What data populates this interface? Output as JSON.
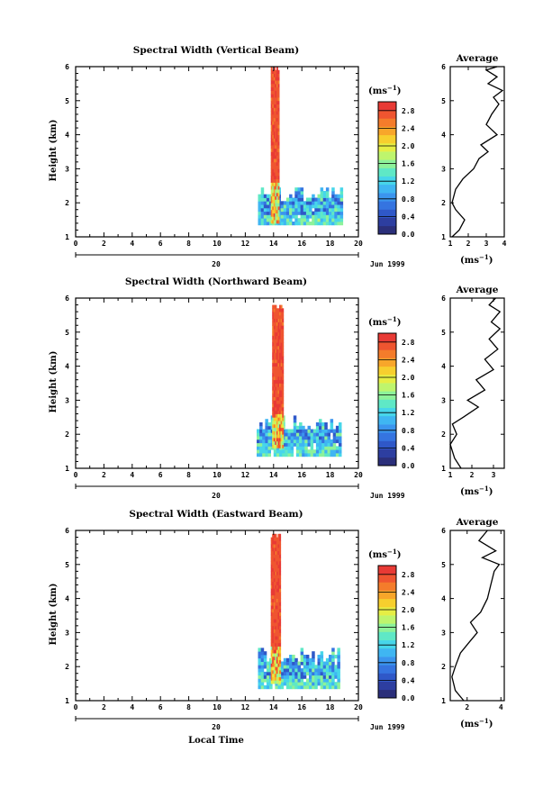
{
  "chart_data": [
    {
      "type": "heatmap",
      "panel": "vertical",
      "title": "Spectral Width (Vertical Beam)",
      "xlabel": "",
      "ylabel": "Height (km)",
      "xlim": [
        0,
        20
      ],
      "ylim": [
        1,
        6
      ],
      "xticks": [
        "0",
        "2",
        "4",
        "6",
        "8",
        "10",
        "12",
        "14",
        "16",
        "18",
        "20"
      ],
      "yticks": [
        "1",
        "2",
        "3",
        "4",
        "5",
        "6"
      ],
      "date_day": "20",
      "date_month": "Jun 1999",
      "colorbar": {
        "label": "(ms",
        "label_sup": "−1",
        "ticks": [
          "2.8",
          "2.4",
          "2.0",
          "1.6",
          "1.2",
          "0.8",
          "0.4",
          "0.0"
        ],
        "range": [
          0,
          3.0
        ]
      },
      "data": {
        "spike": {
          "t0": 13.8,
          "t1": 14.3,
          "h0": 1.4,
          "h1": 6.0,
          "value": 2.9
        },
        "low_region": {
          "t0": 12.9,
          "t1": 18.7,
          "h0": 1.35,
          "h1": 2.45,
          "value_range": [
            0.4,
            1.6
          ]
        }
      },
      "average": {
        "title": "Average",
        "xlim": [
          1,
          4
        ],
        "xticks": [
          "1",
          "2",
          "3",
          "4"
        ],
        "ylim": [
          1,
          6
        ],
        "yticks": [
          "1",
          "2",
          "3",
          "4",
          "5",
          "6"
        ],
        "xlabel": "(ms",
        "xlabel_sup": "−1",
        "profile": [
          [
            1.1,
            1.0
          ],
          [
            1.5,
            1.2
          ],
          [
            1.8,
            1.5
          ],
          [
            1.3,
            1.8
          ],
          [
            1.1,
            2.0
          ],
          [
            1.3,
            2.4
          ],
          [
            1.7,
            2.7
          ],
          [
            2.3,
            3.0
          ],
          [
            2.6,
            3.3
          ],
          [
            3.1,
            3.5
          ],
          [
            2.7,
            3.7
          ],
          [
            3.6,
            4.0
          ],
          [
            3.0,
            4.3
          ],
          [
            3.3,
            4.6
          ],
          [
            3.7,
            4.9
          ],
          [
            3.4,
            5.1
          ],
          [
            3.9,
            5.3
          ],
          [
            3.1,
            5.5
          ],
          [
            3.6,
            5.7
          ],
          [
            3.0,
            5.9
          ],
          [
            3.6,
            6.0
          ]
        ]
      }
    },
    {
      "type": "heatmap",
      "panel": "northward",
      "title": "Spectral Width (Northward Beam)",
      "xlabel": "",
      "ylabel": "Height (km)",
      "xlim": [
        0,
        20
      ],
      "ylim": [
        1,
        6
      ],
      "xticks": [
        "0",
        "2",
        "4",
        "6",
        "8",
        "10",
        "12",
        "14",
        "16",
        "18",
        "20"
      ],
      "yticks": [
        "1",
        "2",
        "3",
        "4",
        "5",
        "6"
      ],
      "date_day": "20",
      "date_month": "Jun 1999",
      "colorbar": {
        "label": "(ms",
        "label_sup": "−1",
        "ticks": [
          "2.8",
          "2.4",
          "2.0",
          "1.6",
          "1.2",
          "0.8",
          "0.4",
          "0.0"
        ],
        "range": [
          0,
          3.0
        ]
      },
      "data": {
        "spike": {
          "t0": 13.9,
          "t1": 14.6,
          "h0": 1.6,
          "h1": 5.8,
          "value": 2.9
        },
        "low_region": {
          "t0": 12.8,
          "t1": 18.6,
          "h0": 1.35,
          "h1": 2.5,
          "value_range": [
            0.4,
            1.6
          ]
        }
      },
      "average": {
        "title": "Average",
        "xlim": [
          1,
          3.5
        ],
        "xticks": [
          "1",
          "2",
          "3"
        ],
        "ylim": [
          1,
          6
        ],
        "yticks": [
          "1",
          "2",
          "3",
          "4",
          "5",
          "6"
        ],
        "xlabel": "(ms",
        "xlabel_sup": "−1",
        "profile": [
          [
            1.5,
            1.0
          ],
          [
            1.2,
            1.3
          ],
          [
            1.0,
            1.7
          ],
          [
            1.3,
            2.0
          ],
          [
            1.1,
            2.3
          ],
          [
            1.6,
            2.5
          ],
          [
            2.3,
            2.8
          ],
          [
            1.8,
            3.0
          ],
          [
            2.6,
            3.3
          ],
          [
            2.2,
            3.6
          ],
          [
            3.0,
            3.9
          ],
          [
            2.6,
            4.2
          ],
          [
            3.2,
            4.5
          ],
          [
            2.8,
            4.8
          ],
          [
            3.3,
            5.1
          ],
          [
            2.9,
            5.3
          ],
          [
            3.3,
            5.6
          ],
          [
            2.8,
            5.8
          ],
          [
            3.1,
            6.0
          ]
        ]
      }
    },
    {
      "type": "heatmap",
      "panel": "eastward",
      "title": "Spectral Width (Eastward Beam)",
      "xlabel": "Local Time",
      "ylabel": "Height (km)",
      "xlim": [
        0,
        20
      ],
      "ylim": [
        1,
        6
      ],
      "xticks": [
        "0",
        "2",
        "4",
        "6",
        "8",
        "10",
        "12",
        "14",
        "16",
        "18",
        "20"
      ],
      "yticks": [
        "1",
        "2",
        "3",
        "4",
        "5",
        "6"
      ],
      "date_day": "20",
      "date_month": "Jun 1999",
      "colorbar": {
        "label": "(ms",
        "label_sup": "−1",
        "ticks": [
          "2.8",
          "2.4",
          "2.0",
          "1.6",
          "1.2",
          "0.8",
          "0.4",
          "0.0"
        ],
        "range": [
          0,
          3.0
        ]
      },
      "data": {
        "spike": {
          "t0": 13.8,
          "t1": 14.4,
          "h0": 1.5,
          "h1": 5.9,
          "value": 2.9
        },
        "low_region": {
          "t0": 12.9,
          "t1": 18.6,
          "h0": 1.35,
          "h1": 2.5,
          "value_range": [
            0.4,
            1.6
          ]
        }
      },
      "average": {
        "title": "Average",
        "xlim": [
          1,
          4.2
        ],
        "xticks": [
          "2",
          "4"
        ],
        "ylim": [
          1,
          6
        ],
        "yticks": [
          "1",
          "2",
          "3",
          "4",
          "5",
          "6"
        ],
        "xlabel": "(ms",
        "xlabel_sup": "−1",
        "profile": [
          [
            1.8,
            1.0
          ],
          [
            1.3,
            1.3
          ],
          [
            1.1,
            1.7
          ],
          [
            1.3,
            2.0
          ],
          [
            1.6,
            2.4
          ],
          [
            2.1,
            2.7
          ],
          [
            2.6,
            3.0
          ],
          [
            2.2,
            3.3
          ],
          [
            2.8,
            3.6
          ],
          [
            3.2,
            4.0
          ],
          [
            3.4,
            4.4
          ],
          [
            3.6,
            4.8
          ],
          [
            3.9,
            5.0
          ],
          [
            2.9,
            5.2
          ],
          [
            3.7,
            5.4
          ],
          [
            2.7,
            5.7
          ],
          [
            3.2,
            6.0
          ]
        ]
      }
    }
  ]
}
